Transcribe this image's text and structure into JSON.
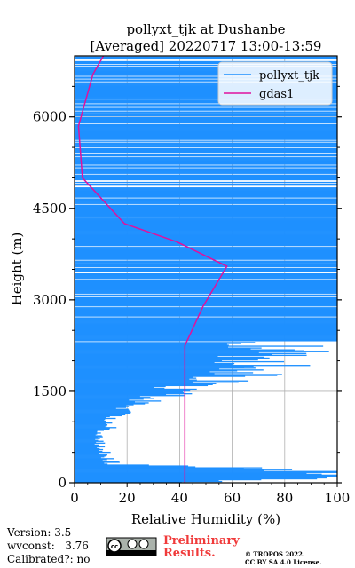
{
  "chart_data": {
    "type": "line",
    "title": "pollyxt_tjk at Dushanbe",
    "subtitle": "[Averaged] 20220717 13:00-13:59",
    "xlabel": "Relative Humidity (%)",
    "ylabel": "Height (m)",
    "xlim": [
      0,
      100
    ],
    "ylim": [
      0,
      7000
    ],
    "xticks": [
      0,
      20,
      40,
      60,
      80,
      100
    ],
    "yticks": [
      0,
      1500,
      3000,
      4500,
      6000
    ],
    "grid": true,
    "legend_position": "top-right",
    "series": [
      {
        "name": "pollyxt_tjk",
        "color": "#1e90ff",
        "description_values_are_x_at_height": true,
        "profile": [
          [
            0,
            41
          ],
          [
            60,
            95
          ],
          [
            120,
            98
          ],
          [
            180,
            100
          ],
          [
            250,
            60
          ],
          [
            300,
            15
          ],
          [
            400,
            12
          ],
          [
            500,
            11
          ],
          [
            600,
            10
          ],
          [
            700,
            9
          ],
          [
            800,
            10
          ],
          [
            900,
            13
          ],
          [
            1000,
            12
          ],
          [
            1100,
            16
          ],
          [
            1200,
            20
          ],
          [
            1300,
            25
          ],
          [
            1400,
            30
          ],
          [
            1500,
            44
          ],
          [
            1600,
            60
          ],
          [
            1700,
            78
          ],
          [
            1800,
            88
          ],
          [
            1900,
            100
          ],
          [
            2000,
            95
          ],
          [
            2100,
            100
          ],
          [
            2200,
            100
          ],
          [
            2300,
            100
          ],
          [
            2400,
            100
          ],
          [
            2500,
            100
          ],
          [
            2600,
            100
          ],
          [
            2700,
            100
          ],
          [
            2800,
            100
          ],
          [
            2900,
            100
          ],
          [
            3000,
            100
          ],
          [
            3100,
            100
          ],
          [
            3200,
            100
          ],
          [
            3300,
            100
          ],
          [
            3400,
            100
          ],
          [
            3500,
            100
          ],
          [
            3600,
            100
          ],
          [
            3700,
            100
          ],
          [
            3800,
            100
          ],
          [
            3900,
            100
          ],
          [
            4000,
            100
          ],
          [
            4100,
            100
          ],
          [
            4200,
            100
          ],
          [
            4300,
            100
          ],
          [
            4400,
            100
          ],
          [
            4500,
            100
          ],
          [
            4600,
            100
          ],
          [
            4700,
            100
          ],
          [
            4800,
            100
          ],
          [
            4900,
            100
          ],
          [
            5000,
            100
          ],
          [
            5100,
            100
          ],
          [
            5200,
            100
          ],
          [
            5300,
            100
          ],
          [
            5400,
            100
          ],
          [
            5500,
            100
          ],
          [
            5600,
            100
          ],
          [
            5700,
            100
          ],
          [
            5800,
            100
          ],
          [
            5900,
            100
          ],
          [
            6000,
            100
          ],
          [
            6100,
            100
          ],
          [
            6200,
            100
          ],
          [
            6300,
            100
          ],
          [
            6400,
            100
          ],
          [
            6500,
            100
          ],
          [
            6600,
            100
          ],
          [
            6700,
            100
          ],
          [
            6800,
            100
          ],
          [
            6900,
            100
          ],
          [
            7000,
            100
          ]
        ]
      },
      {
        "name": "gdas1",
        "color": "#e0119d",
        "points": [
          [
            42,
            0
          ],
          [
            42,
            500
          ],
          [
            42,
            1000
          ],
          [
            42,
            1500
          ],
          [
            42,
            2000
          ],
          [
            42,
            2250
          ],
          [
            49,
            2900
          ],
          [
            58,
            3550
          ],
          [
            39,
            3950
          ],
          [
            19,
            4250
          ],
          [
            3,
            5000
          ],
          [
            1.5,
            5850
          ],
          [
            7,
            6700
          ],
          [
            11,
            7000
          ]
        ]
      }
    ]
  },
  "legend": {
    "items": [
      {
        "label": "pollyxt_tjk",
        "color": "#1e90ff"
      },
      {
        "label": "gdas1",
        "color": "#e0119d"
      }
    ]
  },
  "footer": {
    "version": "Version: 3.5",
    "wvconst": "wvconst:   3.76",
    "calibrated": "Calibrated?: no",
    "license_badge": "cc-by-sa-icon",
    "prelim_line1": "Preliminary",
    "prelim_line2": "Results.",
    "copyright1": "© TROPOS 2022.",
    "copyright2": "CC BY SA 4.0 License."
  }
}
